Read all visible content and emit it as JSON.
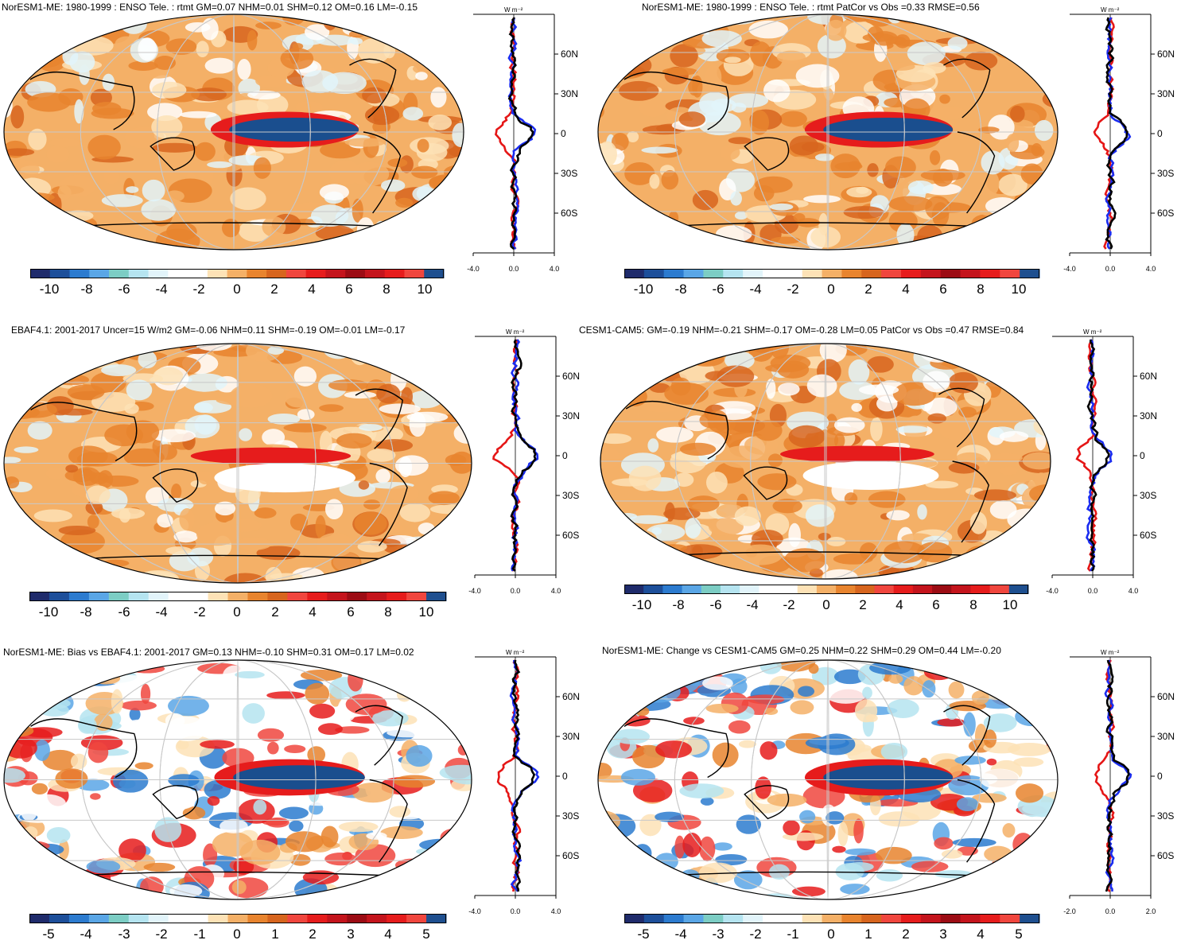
{
  "colors": {
    "palette11": [
      "#1f2b6b",
      "#1d4f9a",
      "#2c7bcf",
      "#5aa6e6",
      "#7ccdc4",
      "#b5e4f0",
      "#e2f4fa",
      "#ffffff",
      "#ffffff",
      "#fde2b6",
      "#f4b067",
      "#e8842e",
      "#d7651e",
      "#f0463e",
      "#e61c1c",
      "#c4141c",
      "#9c0c14",
      "#c4141c",
      "#e61c1c",
      "#f0463e",
      "#1e4f8f"
    ],
    "land": "#000000",
    "grid": "#c8c8c8",
    "obs": "#e51616",
    "model": "#1a2cf0",
    "other": "#000000",
    "blue_patch": "#1a4e8e",
    "orange": "#e8842e",
    "light_orange": "#f4b067",
    "red": "#e61c1c"
  },
  "profile_unit": "W m⁻²",
  "panels": [
    {
      "title": "NorESM1-ME: 1980-1999 : ENSO Tele. : rtmt GM=0.07 NHM=0.01 SHM=0.12 OM=0.16 LM=-0.15",
      "lat_labels": [
        "60N",
        "30N",
        "0",
        "30S",
        "60S"
      ],
      "x_ticks": [
        "-4.0",
        "0.0",
        "4.0"
      ],
      "cbar_labels": [
        "-10",
        "-8",
        "-6",
        "-4",
        "-2",
        "0",
        "2",
        "4",
        "6",
        "8",
        "10"
      ]
    },
    {
      "title": "NorESM1-ME: 1980-1999 : ENSO Tele. : rtmt PatCor vs Obs =0.33 RMSE=0.56",
      "lat_labels": [
        "60N",
        "30N",
        "0",
        "30S",
        "60S"
      ],
      "x_ticks": [
        "-4.0",
        "0.0",
        "4.0"
      ],
      "cbar_labels": [
        "-10",
        "-8",
        "-6",
        "-4",
        "-2",
        "0",
        "2",
        "4",
        "6",
        "8",
        "10"
      ]
    },
    {
      "title": "EBAF4.1: 2001-2017 Uncer=15 W/m2 GM=-0.06 NHM=0.11 SHM=-0.19 OM=-0.01 LM=-0.17",
      "lat_labels": [
        "60N",
        "30N",
        "0",
        "30S",
        "60S"
      ],
      "x_ticks": [
        "-4.0",
        "0.0",
        "4.0"
      ],
      "cbar_labels": [
        "-10",
        "-8",
        "-6",
        "-4",
        "-2",
        "0",
        "2",
        "4",
        "6",
        "8",
        "10"
      ]
    },
    {
      "title": "CESM1-CAM5: GM=-0.19 NHM=-0.21 SHM=-0.17 OM=-0.28 LM=0.05 PatCor vs Obs =0.47 RMSE=0.84",
      "lat_labels": [
        "60N",
        "30N",
        "0",
        "30S",
        "60S"
      ],
      "x_ticks": [
        "-4.0",
        "0.0",
        "4.0"
      ],
      "cbar_labels": [
        "-10",
        "-8",
        "-6",
        "-4",
        "-2",
        "0",
        "2",
        "4",
        "6",
        "8",
        "10"
      ]
    },
    {
      "title": "NorESM1-ME: Bias vs EBAF4.1: 2001-2017 GM=0.13 NHM=-0.10 SHM=0.31 OM=0.17 LM=0.02",
      "lat_labels": [
        "60N",
        "30N",
        "0",
        "30S",
        "60S"
      ],
      "x_ticks": [
        "-4.0",
        "0.0",
        "4.0"
      ],
      "cbar_labels": [
        "-5",
        "-4",
        "-3",
        "-2",
        "-1",
        "0",
        "1",
        "2",
        "3",
        "4",
        "5"
      ]
    },
    {
      "title": "NorESM1-ME: Change vs CESM1-CAM5 GM=0.25 NHM=0.22 SHM=0.29 OM=0.44 LM=-0.20",
      "lat_labels": [
        "60N",
        "30N",
        "0",
        "30S",
        "60S"
      ],
      "x_ticks": [
        "-2.0",
        "0.0",
        "2.0"
      ],
      "cbar_labels": [
        "-5",
        "-4",
        "-3",
        "-2",
        "-1",
        "0",
        "1",
        "2",
        "3",
        "4",
        "5"
      ]
    }
  ]
}
